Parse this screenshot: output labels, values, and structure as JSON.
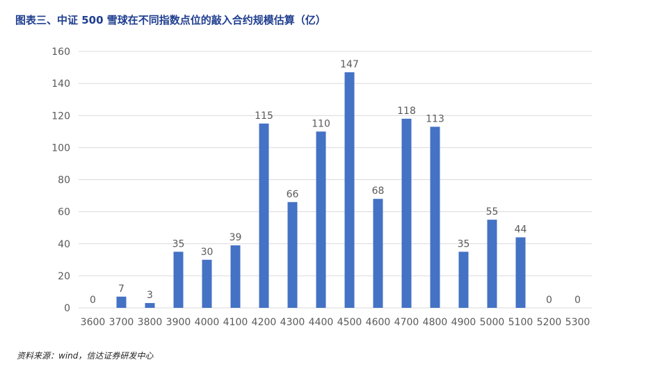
{
  "title": "图表三、中证 500 雪球在不同指数点位的敲入合约规模估算（亿）",
  "source": "资料来源：wind，信达证券研发中心",
  "colors": {
    "bar": "#4472c4",
    "title": "#1f3e8f",
    "grid": "#d9d9d9",
    "axis_text": "#595959"
  },
  "chart_data": {
    "type": "bar",
    "title": "图表三、中证 500 雪球在不同指数点位的敲入合约规模估算（亿）",
    "xlabel": "",
    "ylabel": "",
    "categories": [
      "3600",
      "3700",
      "3800",
      "3900",
      "4000",
      "4100",
      "4200",
      "4300",
      "4400",
      "4500",
      "4600",
      "4700",
      "4800",
      "4900",
      "5000",
      "5100",
      "5200",
      "5300"
    ],
    "values": [
      0,
      7,
      3,
      35,
      30,
      39,
      115,
      66,
      110,
      147,
      68,
      118,
      113,
      35,
      55,
      44,
      0,
      0
    ],
    "ylim": [
      0,
      160
    ],
    "yticks": [
      0,
      20,
      40,
      60,
      80,
      100,
      120,
      140,
      160
    ],
    "grid": true,
    "legend": "none",
    "data_labels": true
  }
}
